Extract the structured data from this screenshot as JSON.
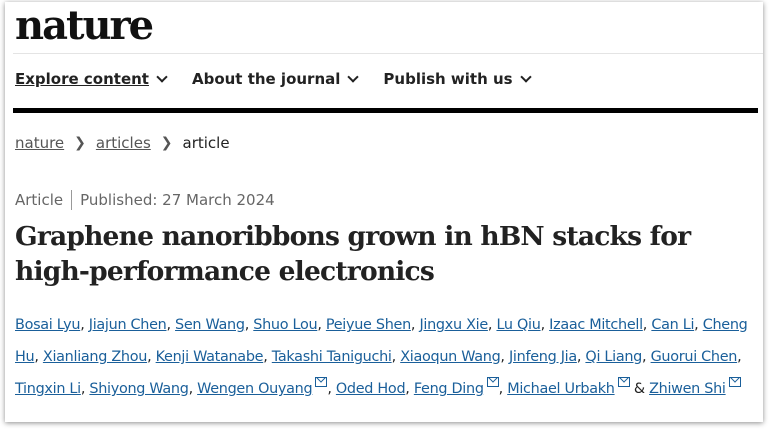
{
  "header": {
    "logo": "nature"
  },
  "nav": {
    "items": [
      {
        "label": "Explore content"
      },
      {
        "label": "About the journal"
      },
      {
        "label": "Publish with us"
      }
    ]
  },
  "breadcrumb": [
    {
      "label": "nature"
    },
    {
      "label": "articles"
    },
    {
      "label": "article"
    }
  ],
  "article": {
    "type": "Article",
    "published": "Published: 27 March 2024",
    "title": "Graphene nanoribbons grown in hBN stacks for high-performance electronics",
    "authors": [
      {
        "name": "Bosai Lyu"
      },
      {
        "name": "Jiajun Chen"
      },
      {
        "name": "Sen Wang"
      },
      {
        "name": "Shuo Lou"
      },
      {
        "name": "Peiyue Shen"
      },
      {
        "name": "Jingxu Xie"
      },
      {
        "name": "Lu Qiu"
      },
      {
        "name": "Izaac Mitchell"
      },
      {
        "name": "Can Li"
      },
      {
        "name": "Cheng Hu"
      },
      {
        "name": "Xianliang Zhou"
      },
      {
        "name": "Kenji Watanabe"
      },
      {
        "name": "Takashi Taniguchi"
      },
      {
        "name": "Xiaoqun Wang"
      },
      {
        "name": "Jinfeng Jia"
      },
      {
        "name": "Qi Liang"
      },
      {
        "name": "Guorui Chen"
      },
      {
        "name": "Tingxin Li"
      },
      {
        "name": "Shiyong Wang"
      },
      {
        "name": "Wengen Ouyang",
        "email": true
      },
      {
        "name": "Oded Hod"
      },
      {
        "name": "Feng Ding",
        "email": true
      },
      {
        "name": "Michael Urbakh",
        "email": true
      },
      {
        "name": "Zhiwen Shi",
        "email": true
      }
    ],
    "last_separator": "&"
  },
  "colors": {
    "link": "#1a5f9a",
    "text": "#222222"
  }
}
